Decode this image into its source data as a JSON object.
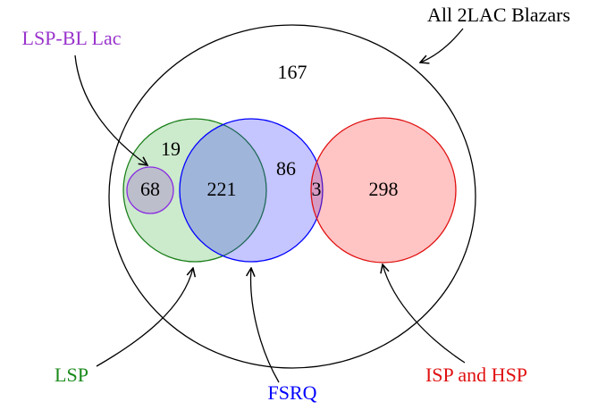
{
  "sets": [
    {
      "label": "All 2LAC Blazars"
    },
    {
      "label": "LSP-BL Lac"
    },
    {
      "label": "LSP"
    },
    {
      "label": "FSRQ"
    },
    {
      "label": "ISP and HSP"
    }
  ],
  "regions": [
    {
      "count": 167
    },
    {
      "count": 19
    },
    {
      "count": 68
    },
    {
      "count": 221
    },
    {
      "count": 86
    },
    {
      "count": 3
    },
    {
      "count": 298
    }
  ]
}
